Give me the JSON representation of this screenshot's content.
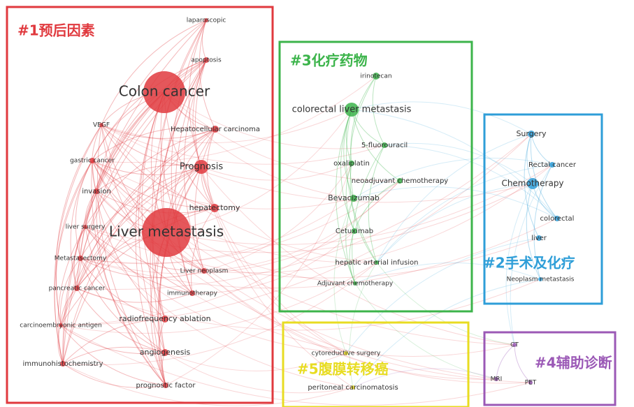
{
  "clusters": [
    {
      "label": "#1预后因素",
      "color": "#e0393e",
      "nodes": [
        "laparoscopic",
        "apoptosis",
        "Colon cancer",
        "VEGF",
        "Hepatocellular carcinoma",
        "gastric cancer",
        "Prognosis",
        "invasion",
        "hepatectomy",
        "liver surgery",
        "Liver metastasis",
        "Metastasectomy",
        "Liver neoplasm",
        "pancreatic cancer",
        "immunotherapy",
        "radiofrequency ablation",
        "carcinoembryonic antigen",
        "angiogenesis",
        "immunohistochemistry",
        "prognostic factor"
      ]
    },
    {
      "label": "#2手术及化疗",
      "color": "#2e9ed8",
      "nodes": [
        "Surgery",
        "Rectal cancer",
        "Chemotherapy",
        "colorectal",
        "liver",
        "Neoplasm metastasis"
      ]
    },
    {
      "label": "#3化疗药物",
      "color": "#3cb44b",
      "nodes": [
        "irinotecan",
        "colorectal liver metastasis",
        "5-fluorouracil",
        "oxaliplatin",
        "neoadjuvant chemotherapy",
        "Bevacizumab",
        "Cetuximab",
        "hepatic arterial infusion",
        "Adjuvant chemotherapy"
      ]
    },
    {
      "label": "#4辅助诊断",
      "color": "#9b59b6",
      "nodes": [
        "CT",
        "MRI",
        "PET"
      ]
    },
    {
      "label": "#5腹膜转移癌",
      "color": "#e8dc22",
      "nodes": [
        "cytoreductive surgery",
        "peritoneal carcinomatosis"
      ]
    }
  ]
}
